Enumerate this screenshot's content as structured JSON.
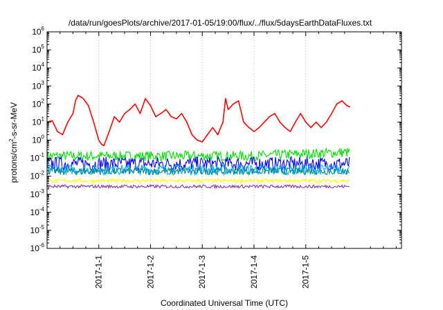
{
  "chart_data": {
    "type": "line",
    "title": "/data/run/goesPlots/archive/2017-01-05/19:00/flux/../flux/5daysEarthDataFluxes.txt",
    "xlabel": "Coordinated Universal Time (UTC)",
    "ylabel_parts": [
      "protons/cm",
      "2",
      "-s-sr-MeV"
    ],
    "y_scale": "log",
    "ylim": [
      1e-06,
      1000000.0
    ],
    "xlim": [
      -1.0,
      5.85
    ],
    "x_ticks": [
      {
        "value": 0,
        "label": "2017-1-1"
      },
      {
        "value": 1,
        "label": "2017-1-2"
      },
      {
        "value": 2,
        "label": "2017-1-3"
      },
      {
        "value": 3,
        "label": "2017-1-4"
      },
      {
        "value": 4,
        "label": "2017-1-5"
      }
    ],
    "y_ticks": [
      {
        "value": 1e-06,
        "base": "10",
        "exp": "-6"
      },
      {
        "value": 1e-05,
        "base": "10",
        "exp": "-5"
      },
      {
        "value": 0.0001,
        "base": "10",
        "exp": "-4"
      },
      {
        "value": 0.001,
        "base": "10",
        "exp": "-3"
      },
      {
        "value": 0.01,
        "base": "10",
        "exp": "-2"
      },
      {
        "value": 0.1,
        "base": "10",
        "exp": "-1"
      },
      {
        "value": 1.0,
        "base": "10",
        "exp": "0"
      },
      {
        "value": 10.0,
        "base": "10",
        "exp": "1"
      },
      {
        "value": 100.0,
        "base": "10",
        "exp": "2"
      },
      {
        "value": 1000.0,
        "base": "10",
        "exp": "3"
      },
      {
        "value": 10000.0,
        "base": "10",
        "exp": "4"
      },
      {
        "value": 100000.0,
        "base": "10",
        "exp": "5"
      },
      {
        "value": 1000000.0,
        "base": "10",
        "exp": "6"
      }
    ],
    "grid": "x-dotted",
    "series": [
      {
        "color": "#ff0000",
        "style": "line",
        "x": [
          -1.0,
          -0.9,
          -0.8,
          -0.7,
          -0.6,
          -0.5,
          -0.45,
          -0.4,
          -0.35,
          -0.3,
          -0.2,
          -0.1,
          0.0,
          0.05,
          0.1,
          0.2,
          0.3,
          0.4,
          0.5,
          0.6,
          0.7,
          0.8,
          0.9,
          1.0,
          1.1,
          1.2,
          1.3,
          1.4,
          1.5,
          1.6,
          1.7,
          1.8,
          1.9,
          2.0,
          2.1,
          2.2,
          2.3,
          2.4,
          2.45,
          2.5,
          2.6,
          2.7,
          2.8,
          2.9,
          3.0,
          3.1,
          3.2,
          3.3,
          3.4,
          3.5,
          3.6,
          3.7,
          3.8,
          3.9,
          4.0,
          4.1,
          4.2,
          4.3,
          4.4,
          4.5,
          4.6,
          4.7,
          4.8,
          4.85
        ],
        "y": [
          10,
          12,
          3,
          2,
          10,
          30,
          150,
          300,
          250,
          200,
          80,
          10,
          1.0,
          0.6,
          0.5,
          3,
          20,
          10,
          30,
          50,
          100,
          30,
          200,
          80,
          20,
          30,
          50,
          20,
          15,
          30,
          10,
          2,
          1,
          0.8,
          2,
          5,
          2,
          10,
          200,
          50,
          100,
          150,
          10,
          5,
          3,
          5,
          10,
          20,
          30,
          10,
          5,
          3,
          10,
          30,
          10,
          5,
          10,
          5,
          10,
          30,
          100,
          150,
          80,
          70
        ]
      },
      {
        "color": "#00dd00",
        "style": "band",
        "range": [
          0.07,
          0.25
        ],
        "x_range": [
          -1.0,
          4.85
        ],
        "trend": [
          [
            -1.0,
            1.0
          ],
          [
            3.0,
            1.0
          ],
          [
            4.85,
            1.6
          ]
        ]
      },
      {
        "color": "#0000ff",
        "style": "band",
        "range": [
          0.02,
          0.12
        ],
        "x_range": [
          -1.0,
          4.85
        ]
      },
      {
        "color": "#00aaff",
        "style": "band",
        "range": [
          0.012,
          0.045
        ],
        "x_range": [
          -1.0,
          4.85
        ]
      },
      {
        "color": "#008888",
        "style": "band",
        "range": [
          0.012,
          0.03
        ],
        "x_range": [
          -1.0,
          4.85
        ]
      },
      {
        "color": "#ffff00",
        "style": "band",
        "range": [
          0.0045,
          0.007
        ],
        "x_range": [
          -1.0,
          4.85
        ]
      },
      {
        "color": "#883399",
        "style": "band",
        "range": [
          0.0022,
          0.0033
        ],
        "x_range": [
          -1.0,
          4.85
        ]
      }
    ]
  }
}
